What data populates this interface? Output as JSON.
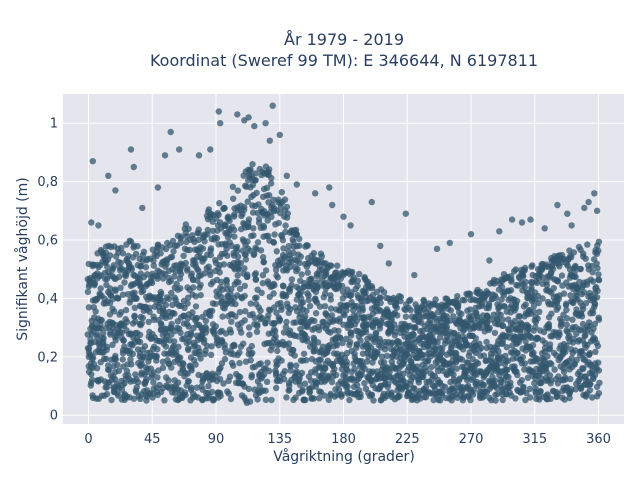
{
  "chart_data": {
    "type": "scatter",
    "title_line1": "År 1979 - 2019",
    "title_line2": "Koordinat (Sweref 99 TM): E 346644, N 6197811",
    "xlabel": "Vågriktning (grader)",
    "ylabel": "Signifikant våghöjd (m)",
    "xlim": [
      -18,
      378
    ],
    "ylim": [
      -0.03,
      1.1
    ],
    "x_ticks": [
      0,
      45,
      90,
      135,
      180,
      225,
      270,
      315,
      360
    ],
    "x_tick_labels": [
      "0",
      "45",
      "90",
      "135",
      "180",
      "225",
      "270",
      "315",
      "360"
    ],
    "y_ticks": [
      0,
      0.2,
      0.4,
      0.6,
      0.8,
      1
    ],
    "y_tick_labels": [
      "0",
      "0,2",
      "0,4",
      "0,6",
      "0,8",
      "1"
    ],
    "grid": true,
    "background_color": "#e5e5ee",
    "marker_color": "#33576e",
    "envelope": {
      "direction_deg": [
        0,
        10,
        30,
        45,
        60,
        75,
        90,
        105,
        115,
        125,
        135,
        150,
        165,
        180,
        195,
        210,
        225,
        240,
        255,
        270,
        285,
        300,
        315,
        330,
        345,
        360
      ],
      "lower_height_m": [
        0.06,
        0.05,
        0.05,
        0.05,
        0.05,
        0.05,
        0.05,
        0.04,
        0.04,
        0.05,
        0.05,
        0.05,
        0.05,
        0.05,
        0.05,
        0.05,
        0.05,
        0.05,
        0.05,
        0.05,
        0.05,
        0.05,
        0.05,
        0.05,
        0.05,
        0.06
      ],
      "upper_height_m": [
        0.52,
        0.58,
        0.6,
        0.59,
        0.62,
        0.68,
        0.72,
        0.8,
        0.86,
        0.86,
        0.8,
        0.6,
        0.55,
        0.5,
        0.48,
        0.42,
        0.4,
        0.4,
        0.4,
        0.42,
        0.46,
        0.5,
        0.52,
        0.55,
        0.58,
        0.6
      ]
    },
    "outliers": [
      {
        "x": 3,
        "y": 0.87
      },
      {
        "x": 14,
        "y": 0.82
      },
      {
        "x": 30,
        "y": 0.91
      },
      {
        "x": 32,
        "y": 0.85
      },
      {
        "x": 58,
        "y": 0.97
      },
      {
        "x": 54,
        "y": 0.89
      },
      {
        "x": 64,
        "y": 0.91
      },
      {
        "x": 49,
        "y": 0.78
      },
      {
        "x": 78,
        "y": 0.89
      },
      {
        "x": 86,
        "y": 0.91
      },
      {
        "x": 92,
        "y": 1.04
      },
      {
        "x": 93,
        "y": 1.0
      },
      {
        "x": 105,
        "y": 1.03
      },
      {
        "x": 110,
        "y": 1.01
      },
      {
        "x": 113,
        "y": 1.02
      },
      {
        "x": 117,
        "y": 0.99
      },
      {
        "x": 125,
        "y": 1.0
      },
      {
        "x": 130,
        "y": 1.06
      },
      {
        "x": 135,
        "y": 0.96
      },
      {
        "x": 128,
        "y": 0.94
      },
      {
        "x": 140,
        "y": 0.82
      },
      {
        "x": 147,
        "y": 0.79
      },
      {
        "x": 160,
        "y": 0.76
      },
      {
        "x": 170,
        "y": 0.78
      },
      {
        "x": 172,
        "y": 0.72
      },
      {
        "x": 180,
        "y": 0.68
      },
      {
        "x": 185,
        "y": 0.65
      },
      {
        "x": 200,
        "y": 0.73
      },
      {
        "x": 206,
        "y": 0.58
      },
      {
        "x": 212,
        "y": 0.52
      },
      {
        "x": 224,
        "y": 0.69
      },
      {
        "x": 230,
        "y": 0.48
      },
      {
        "x": 246,
        "y": 0.57
      },
      {
        "x": 255,
        "y": 0.59
      },
      {
        "x": 270,
        "y": 0.62
      },
      {
        "x": 283,
        "y": 0.53
      },
      {
        "x": 290,
        "y": 0.63
      },
      {
        "x": 299,
        "y": 0.67
      },
      {
        "x": 306,
        "y": 0.66
      },
      {
        "x": 312,
        "y": 0.67
      },
      {
        "x": 322,
        "y": 0.64
      },
      {
        "x": 331,
        "y": 0.72
      },
      {
        "x": 338,
        "y": 0.69
      },
      {
        "x": 341,
        "y": 0.65
      },
      {
        "x": 350,
        "y": 0.71
      },
      {
        "x": 353,
        "y": 0.73
      },
      {
        "x": 357,
        "y": 0.76
      },
      {
        "x": 359,
        "y": 0.7
      },
      {
        "x": 2,
        "y": 0.66
      },
      {
        "x": 7,
        "y": 0.65
      },
      {
        "x": 19,
        "y": 0.77
      },
      {
        "x": 38,
        "y": 0.71
      }
    ]
  }
}
